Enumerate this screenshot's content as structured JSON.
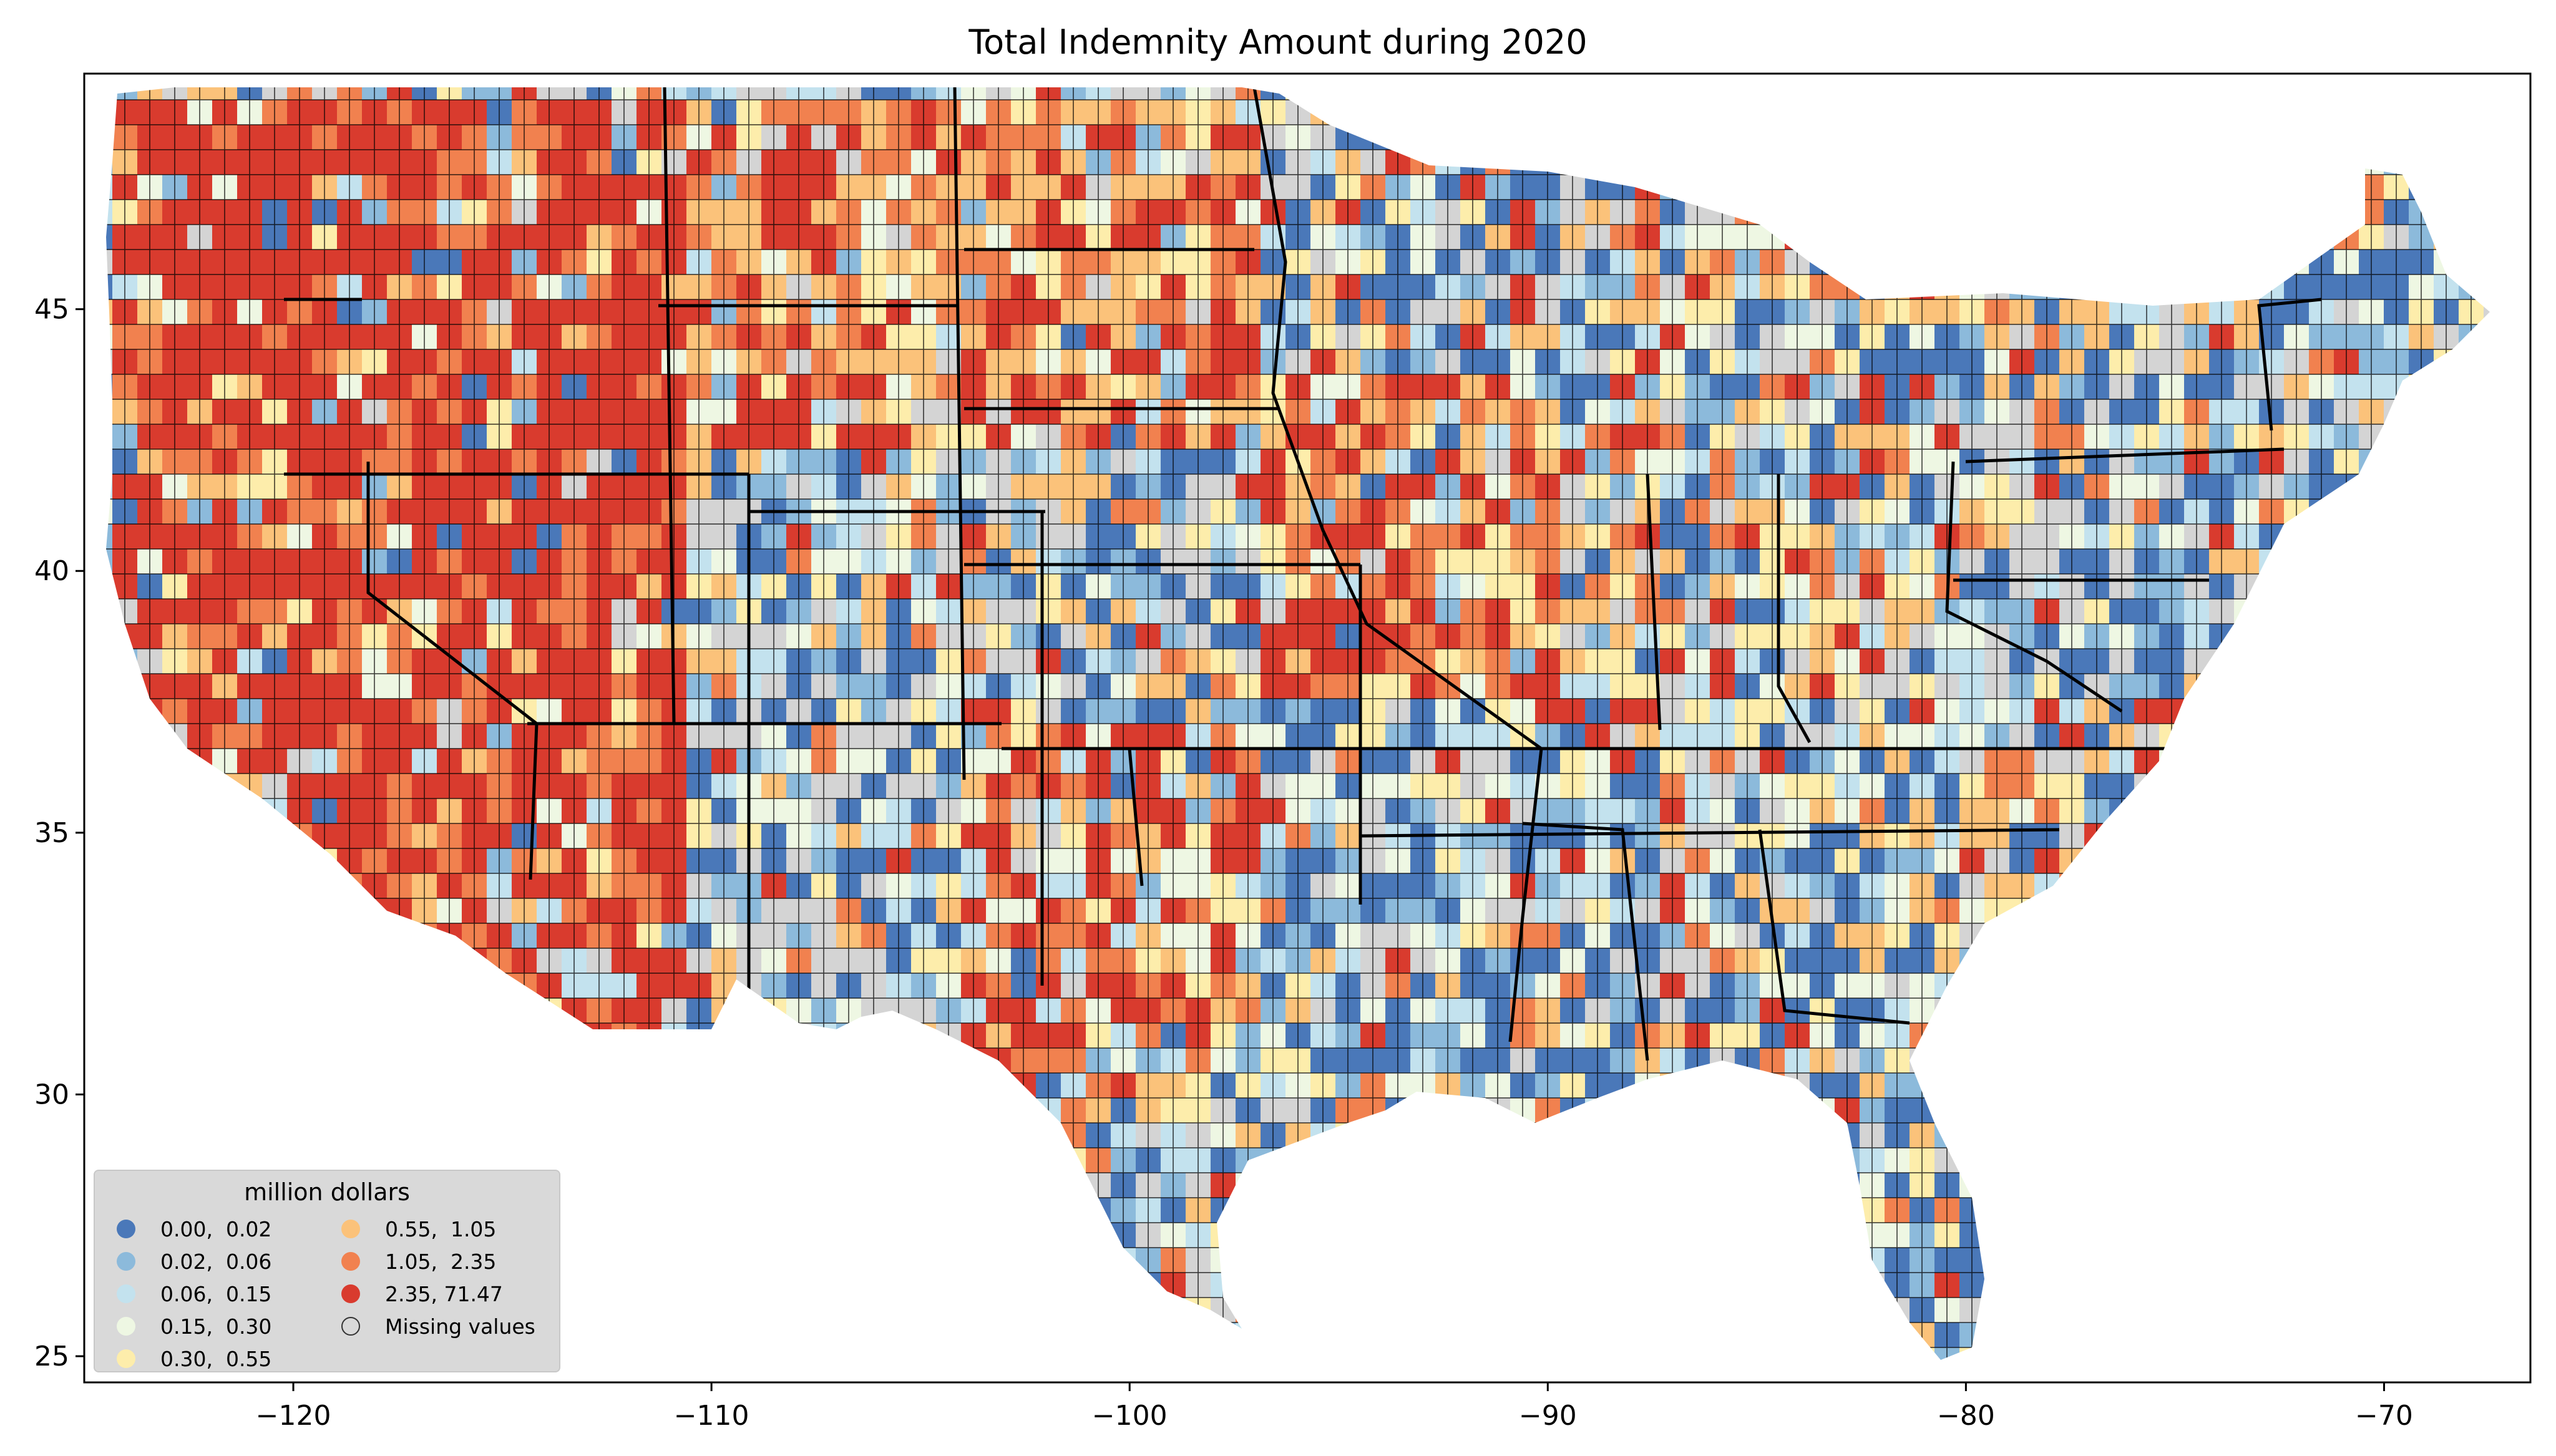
{
  "title": "Total Indemnity Amount during 2020",
  "legend": {
    "title": "million dollars",
    "items": [
      {
        "label": "0.00,  0.02",
        "color": "#4a78b9"
      },
      {
        "label": "0.02,  0.06",
        "color": "#8cbadb"
      },
      {
        "label": "0.06,  0.15",
        "color": "#c3e2ee"
      },
      {
        "label": "0.15,  0.30",
        "color": "#eef7e3"
      },
      {
        "label": "0.30,  0.55",
        "color": "#fdedab"
      },
      {
        "label": "0.55,  1.05",
        "color": "#fbc27a"
      },
      {
        "label": "1.05,  2.35",
        "color": "#f1814f"
      },
      {
        "label": "2.35, 71.47",
        "color": "#d93b2e"
      },
      {
        "label": "Missing values",
        "color": "#d4d4d4"
      }
    ]
  },
  "x_ticks": [
    "−120",
    "−110",
    "−100",
    "−90",
    "−80",
    "−70"
  ],
  "y_ticks": [
    "45",
    "40",
    "35",
    "30",
    "25"
  ],
  "chart_data": {
    "type": "choropleth",
    "title": "Total Indemnity Amount during 2020",
    "legend_title": "million dollars",
    "bins": [
      [
        0.0,
        0.02
      ],
      [
        0.02,
        0.06
      ],
      [
        0.06,
        0.15
      ],
      [
        0.15,
        0.3
      ],
      [
        0.3,
        0.55
      ],
      [
        0.55,
        1.05
      ],
      [
        1.05,
        2.35
      ],
      [
        2.35,
        71.47
      ]
    ],
    "xlim": [
      -125,
      -66.5
    ],
    "ylim": [
      24.5,
      49.5
    ],
    "x_ticks": [
      -120,
      -110,
      -100,
      -90,
      -80,
      -70
    ],
    "y_ticks": [
      25,
      30,
      35,
      40,
      45
    ],
    "legend_position": "lower-left"
  }
}
